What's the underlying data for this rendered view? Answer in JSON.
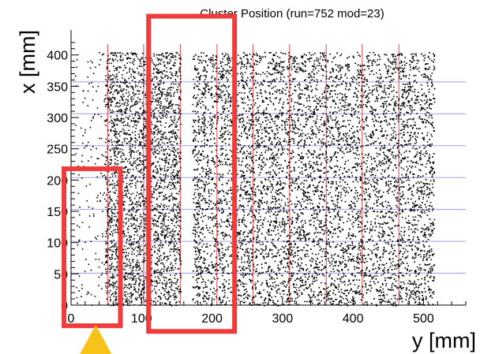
{
  "chart_data": {
    "type": "scatter",
    "title": "Cluster Position (run=752 mod=23)",
    "xlabel": "y [mm]",
    "ylabel": "x [mm]",
    "xlim": [
      0,
      560
    ],
    "ylim": [
      0,
      440
    ],
    "x_ticks": [
      0,
      100,
      200,
      300,
      400,
      500
    ],
    "y_ticks": [
      0,
      50,
      100,
      150,
      200,
      250,
      300,
      350,
      400
    ],
    "x_tick_labels": [
      "0",
      "100",
      "200",
      "300",
      "400",
      "500"
    ],
    "y_tick_labels": [
      "0",
      "50",
      "100",
      "150",
      "200",
      "250",
      "300",
      "350",
      "400"
    ],
    "point_color": "#000000",
    "point_regions": [
      {
        "x_range": [
          5,
          48
        ],
        "y_range": [
          0,
          405
        ],
        "density": "sparse"
      },
      {
        "x_range": [
          48,
          155
        ],
        "y_range": [
          0,
          405
        ],
        "density": "dense"
      },
      {
        "x_range": [
          172,
          515
        ],
        "y_range": [
          0,
          405
        ],
        "density": "dense"
      }
    ],
    "gap_x_range": [
      155,
      172
    ],
    "vertical_grid_lines_x": [
      52,
      103,
      155,
      207,
      258,
      310,
      362,
      413,
      465
    ],
    "vertical_grid_color": "#e8474c",
    "horizontal_grid_lines_y": [
      51,
      102,
      153,
      204,
      255,
      306,
      357
    ],
    "horizontal_grid_color": "#a0a0d8",
    "highlight_boxes": [
      {
        "x_range": [
          -10,
          70
        ],
        "y_range": [
          -33,
          218
        ]
      },
      {
        "x_range": [
          110,
          232
        ],
        "y_range": [
          -42,
          462
        ]
      }
    ],
    "highlight_color": "#ef3b3b",
    "marker": {
      "shape": "triangle",
      "x": 35,
      "color": "#f7c21a"
    }
  }
}
